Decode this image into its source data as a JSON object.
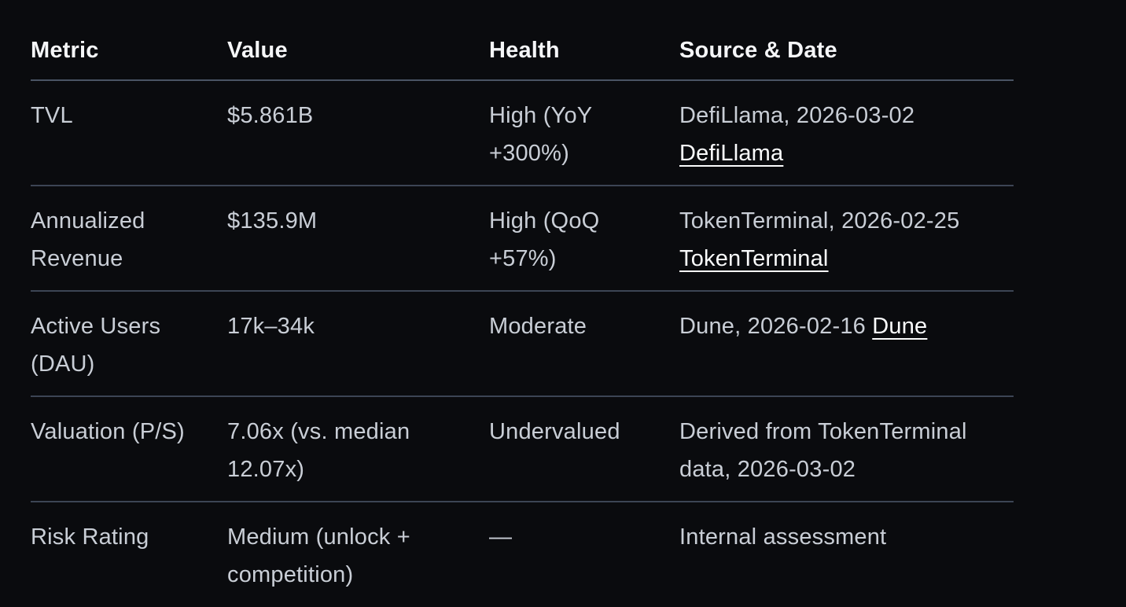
{
  "theme": {
    "background": "#0a0b0e",
    "header_text": "#f5f6f8",
    "body_text": "#c9ced6",
    "link_text": "#fbfcfd",
    "header_border": "#4a5464",
    "row_border": "#3c4554"
  },
  "table": {
    "columns": [
      {
        "label": "Metric"
      },
      {
        "label": "Value"
      },
      {
        "label": "Health"
      },
      {
        "label": "Source & Date"
      }
    ],
    "rows": [
      {
        "metric": "TVL",
        "value": "$5.861B",
        "health": "High (YoY +300%)",
        "source_text": "DefiLlama, 2026-03-02",
        "source_link": "DefiLlama"
      },
      {
        "metric": "Annualized Revenue",
        "value": "$135.9M",
        "health": "High (QoQ +57%)",
        "source_text": "TokenTerminal, 2026-02-25",
        "source_link": "TokenTerminal"
      },
      {
        "metric": "Active Users (DAU)",
        "value": "17k–34k",
        "health": "Moderate",
        "source_text": "Dune, 2026-02-16",
        "source_link": "Dune"
      },
      {
        "metric": "Valuation (P/S)",
        "value": "7.06x (vs. median 12.07x)",
        "health": "Undervalued",
        "source_text": "Derived from TokenTerminal data, 2026-03-02",
        "source_link": ""
      },
      {
        "metric": "Risk Rating",
        "value": "Medium (unlock + competition)",
        "health": "—",
        "source_text": "Internal assessment",
        "source_link": ""
      }
    ]
  }
}
